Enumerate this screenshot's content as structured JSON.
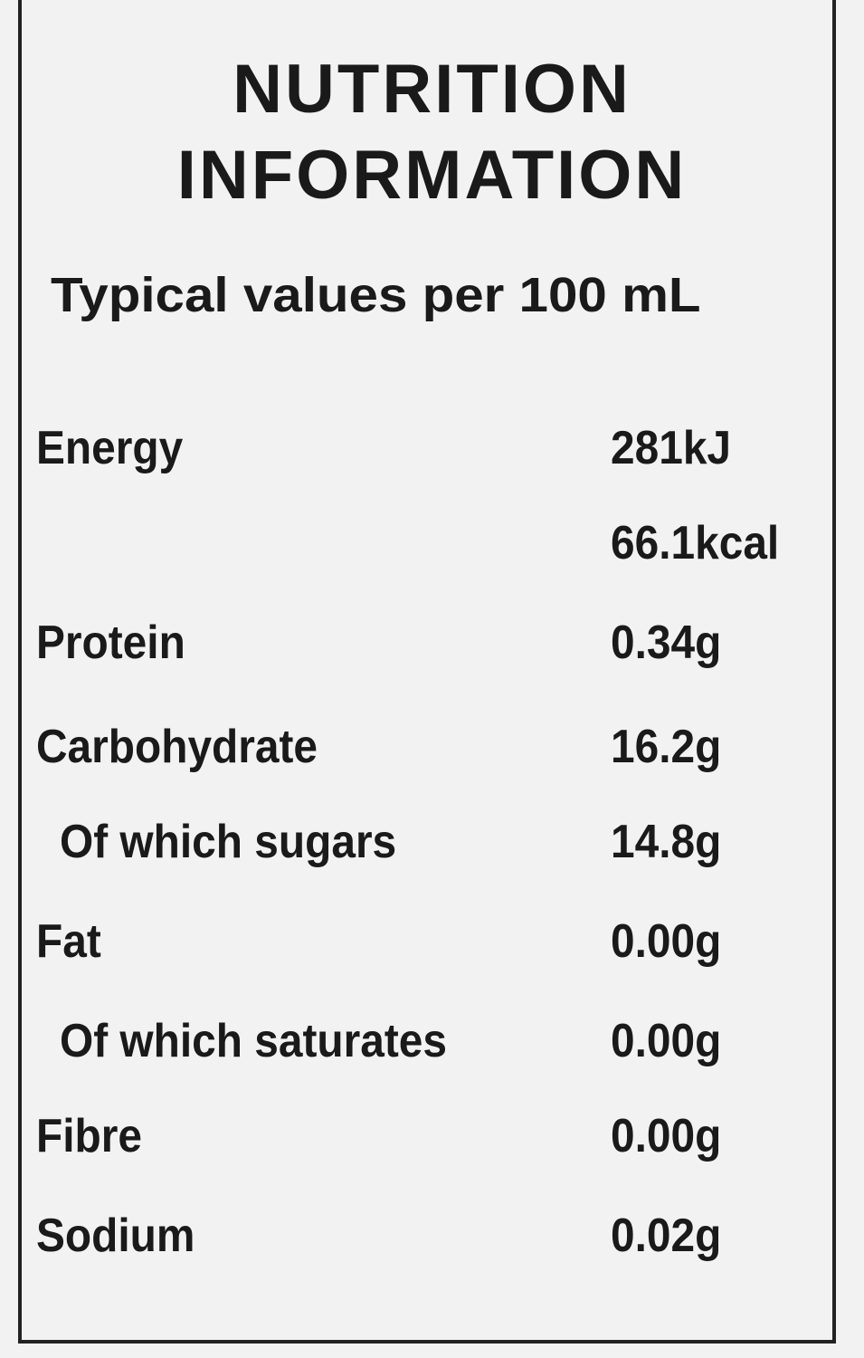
{
  "header": {
    "title": [
      "NUTRITION",
      "INFORMATION"
    ],
    "subtitle": "Typical values per 100 mL"
  },
  "rows": [
    {
      "label": "Energy",
      "values": [
        "281kJ",
        "66.1kcal"
      ]
    },
    {
      "label": "Protein",
      "values": [
        "0.34g"
      ]
    },
    {
      "label": "Carbohydrate",
      "values": [
        "16.2g"
      ],
      "of_which": [
        {
          "label": "Of which sugars",
          "values": [
            "14.8g"
          ]
        }
      ]
    },
    {
      "label": "Fat",
      "values": [
        "0.00g"
      ],
      "of_which": [
        {
          "label": "Of which saturates",
          "values": [
            "0.00g"
          ]
        }
      ]
    },
    {
      "label": "Fibre",
      "values": [
        "0.00g"
      ]
    },
    {
      "label": "Sodium",
      "values": [
        "0.02g"
      ]
    }
  ]
}
